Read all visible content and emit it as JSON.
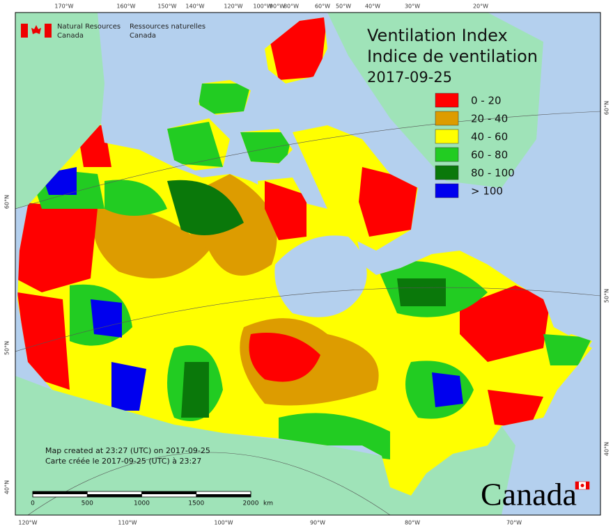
{
  "title": [
    "Ventilation Index",
    "Indice de ventilation"
  ],
  "date": "2017-09-25",
  "agency": {
    "en": [
      "Natural Resources",
      "Canada"
    ],
    "fr": [
      "Ressources naturelles",
      "Canada"
    ]
  },
  "legend": [
    {
      "label": "0 - 20",
      "color": "#ff0000"
    },
    {
      "label": "20 - 40",
      "color": "#dd9c00"
    },
    {
      "label": "40 - 60",
      "color": "#ffff00"
    },
    {
      "label": "60 - 80",
      "color": "#22cc22"
    },
    {
      "label": "80 - 100",
      "color": "#0a780a"
    },
    {
      "label": "> 100",
      "color": "#0000ee"
    }
  ],
  "credits": [
    "Map created at 23:27 (UTC) on 2017-09-25",
    "Carte créée le 2017-09-25 (UTC) à 23:27"
  ],
  "scale": {
    "ticks": [
      0,
      500,
      1000,
      1500,
      2000
    ],
    "unit": "km"
  },
  "graticule": {
    "top": [
      "170°W",
      "160°W",
      "150°W",
      "140°W",
      "120°W",
      "100°W",
      "90°W",
      "80°W",
      "60°W",
      "50°W",
      "40°W",
      "30°W",
      "20°W"
    ],
    "bottom": [
      "120°W",
      "110°W",
      "100°W",
      "90°W",
      "80°W",
      "70°W"
    ],
    "left": [
      "60°N",
      "50°N",
      "40°N"
    ],
    "right": [
      "60°N",
      "50°N",
      "40°N"
    ]
  },
  "wordmark": "Canada"
}
